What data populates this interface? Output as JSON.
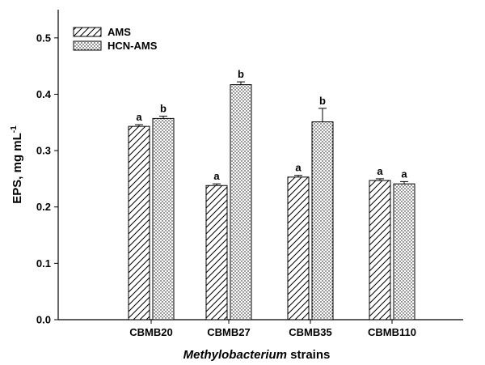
{
  "chart_data": {
    "type": "bar",
    "categories": [
      "CBMB20",
      "CBMB27",
      "CBMB35",
      "CBMB110"
    ],
    "series": [
      {
        "name": "AMS",
        "pattern": "diagonal-hatch",
        "values": [
          0.343,
          0.238,
          0.253,
          0.247
        ],
        "errors": [
          0.003,
          0.003,
          0.003,
          0.003
        ],
        "significance": [
          "a",
          "a",
          "a",
          "a"
        ]
      },
      {
        "name": "HCN-AMS",
        "pattern": "dotted",
        "values": [
          0.357,
          0.417,
          0.351,
          0.241
        ],
        "errors": [
          0.004,
          0.005,
          0.024,
          0.004
        ],
        "significance": [
          "b",
          "b",
          "b",
          "a"
        ]
      }
    ],
    "xlabel": {
      "italic": "Methylobacterium",
      "rest": " strains"
    },
    "ylabel": {
      "main": "EPS, mg mL",
      "superscript": "-1"
    },
    "ylim": [
      0.0,
      0.55
    ],
    "yticks": [
      "0.0",
      "0.1",
      "0.2",
      "0.3",
      "0.4",
      "0.5"
    ],
    "grid": false,
    "legend_position": "top-left"
  }
}
